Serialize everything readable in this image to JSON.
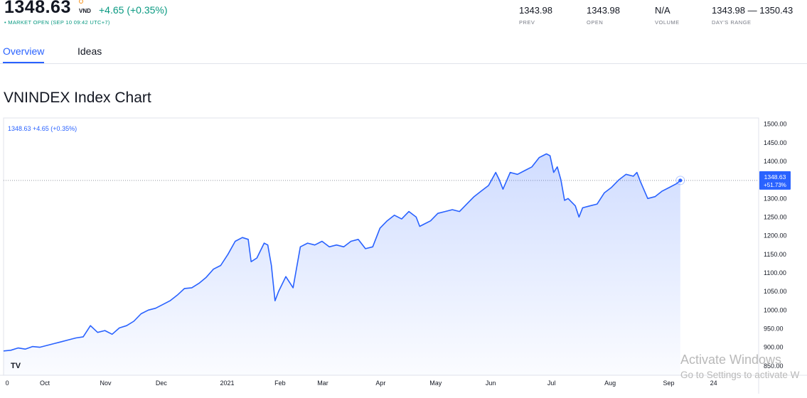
{
  "header": {
    "price": "1348.63",
    "currency": "VND",
    "change": "+4.65 (+0.35%)",
    "market_status": "• MARKET OPEN (SEP 10 09:42 UTC+7)"
  },
  "stats": [
    {
      "value": "1343.98",
      "label": "PREV"
    },
    {
      "value": "1343.98",
      "label": "OPEN"
    },
    {
      "value": "N/A",
      "label": "VOLUME"
    },
    {
      "value": "1343.98 — 1350.43",
      "label": "DAY'S RANGE"
    }
  ],
  "tabs": [
    {
      "label": "Overview",
      "active": true
    },
    {
      "label": "Ideas",
      "active": false
    }
  ],
  "chart_title": "VNINDEX Index Chart",
  "watermark": {
    "line1": "Activate Windows",
    "line2": "Go to Settings to activate W"
  },
  "colors": {
    "line": "#2962ff",
    "up": "#089981",
    "accent_dot": "#f7931a"
  },
  "chart_data": {
    "type": "area",
    "legend_text": "1348.63 +4.65 (+0.35%)",
    "last_price_label": "1348.63",
    "last_change_label": "+51.73%",
    "logo": "TV",
    "xlim": [
      0,
      100
    ],
    "ylim": [
      840,
      1505
    ],
    "y_ticks": [
      850,
      900,
      950,
      1000,
      1050,
      1100,
      1150,
      1200,
      1250,
      1300,
      1350,
      1400,
      1450,
      1500
    ],
    "y_tick_labels": [
      "850.00",
      "900.00",
      "950.00",
      "1000.00",
      "1050.00",
      "1100.00",
      "1150.00",
      "1200.00",
      "1250.00",
      "1300.00",
      "1350.00",
      "1400.00",
      "1450.00",
      "1500.00"
    ],
    "x_ticks": [
      {
        "x": 0.5,
        "label": "0"
      },
      {
        "x": 5.7,
        "label": "Oct"
      },
      {
        "x": 14.1,
        "label": "Nov"
      },
      {
        "x": 21.8,
        "label": "Dec"
      },
      {
        "x": 30.9,
        "label": "2021"
      },
      {
        "x": 38.2,
        "label": "Feb"
      },
      {
        "x": 44.1,
        "label": "Mar"
      },
      {
        "x": 52.1,
        "label": "Apr"
      },
      {
        "x": 59.7,
        "label": "May"
      },
      {
        "x": 67.3,
        "label": "Jun"
      },
      {
        "x": 75.7,
        "label": "Jul"
      },
      {
        "x": 83.8,
        "label": "Aug"
      },
      {
        "x": 91.9,
        "label": "Sep"
      },
      {
        "x": 98.1,
        "label": "24"
      }
    ],
    "reference_price": 1348.63,
    "series": [
      {
        "points": [
          [
            0,
            890
          ],
          [
            1,
            892
          ],
          [
            2,
            898
          ],
          [
            3,
            895
          ],
          [
            4,
            902
          ],
          [
            5,
            900
          ],
          [
            6,
            905
          ],
          [
            7,
            910
          ],
          [
            8,
            915
          ],
          [
            9,
            920
          ],
          [
            10,
            925
          ],
          [
            11,
            928
          ],
          [
            12,
            958
          ],
          [
            13,
            940
          ],
          [
            14,
            945
          ],
          [
            15,
            935
          ],
          [
            16,
            952
          ],
          [
            17,
            958
          ],
          [
            18,
            970
          ],
          [
            19,
            990
          ],
          [
            20,
            1000
          ],
          [
            21,
            1005
          ],
          [
            22,
            1015
          ],
          [
            23,
            1025
          ],
          [
            24,
            1040
          ],
          [
            25,
            1058
          ],
          [
            26,
            1060
          ],
          [
            27,
            1072
          ],
          [
            28,
            1088
          ],
          [
            29,
            1110
          ],
          [
            30,
            1120
          ],
          [
            31,
            1150
          ],
          [
            32,
            1185
          ],
          [
            33,
            1195
          ],
          [
            33.8,
            1190
          ],
          [
            34.2,
            1130
          ],
          [
            35,
            1140
          ],
          [
            36,
            1180
          ],
          [
            36.5,
            1175
          ],
          [
            37,
            1120
          ],
          [
            37.5,
            1025
          ],
          [
            38,
            1050
          ],
          [
            39,
            1090
          ],
          [
            40,
            1060
          ],
          [
            41,
            1170
          ],
          [
            42,
            1180
          ],
          [
            43,
            1175
          ],
          [
            44,
            1185
          ],
          [
            45,
            1170
          ],
          [
            46,
            1175
          ],
          [
            47,
            1170
          ],
          [
            48,
            1185
          ],
          [
            49,
            1190
          ],
          [
            50,
            1165
          ],
          [
            51,
            1170
          ],
          [
            52,
            1220
          ],
          [
            53,
            1240
          ],
          [
            54,
            1255
          ],
          [
            55,
            1245
          ],
          [
            56,
            1265
          ],
          [
            57,
            1250
          ],
          [
            57.5,
            1225
          ],
          [
            58,
            1230
          ],
          [
            59,
            1240
          ],
          [
            60,
            1260
          ],
          [
            61,
            1265
          ],
          [
            62,
            1270
          ],
          [
            63,
            1265
          ],
          [
            64,
            1285
          ],
          [
            65,
            1305
          ],
          [
            66,
            1320
          ],
          [
            67,
            1335
          ],
          [
            68,
            1370
          ],
          [
            68.5,
            1350
          ],
          [
            69,
            1325
          ],
          [
            70,
            1370
          ],
          [
            71,
            1365
          ],
          [
            72,
            1375
          ],
          [
            73,
            1385
          ],
          [
            74,
            1410
          ],
          [
            75,
            1420
          ],
          [
            75.5,
            1415
          ],
          [
            76,
            1370
          ],
          [
            76.5,
            1385
          ],
          [
            77,
            1350
          ],
          [
            77.5,
            1295
          ],
          [
            78,
            1300
          ],
          [
            79,
            1280
          ],
          [
            79.5,
            1250
          ],
          [
            80,
            1275
          ],
          [
            81,
            1280
          ],
          [
            82,
            1285
          ],
          [
            83,
            1315
          ],
          [
            84,
            1330
          ],
          [
            85,
            1350
          ],
          [
            86,
            1365
          ],
          [
            87,
            1360
          ],
          [
            87.5,
            1370
          ],
          [
            88,
            1345
          ],
          [
            89,
            1300
          ],
          [
            90,
            1305
          ],
          [
            91,
            1320
          ],
          [
            92,
            1330
          ],
          [
            93,
            1340
          ],
          [
            93.5,
            1348.63
          ]
        ]
      }
    ]
  }
}
